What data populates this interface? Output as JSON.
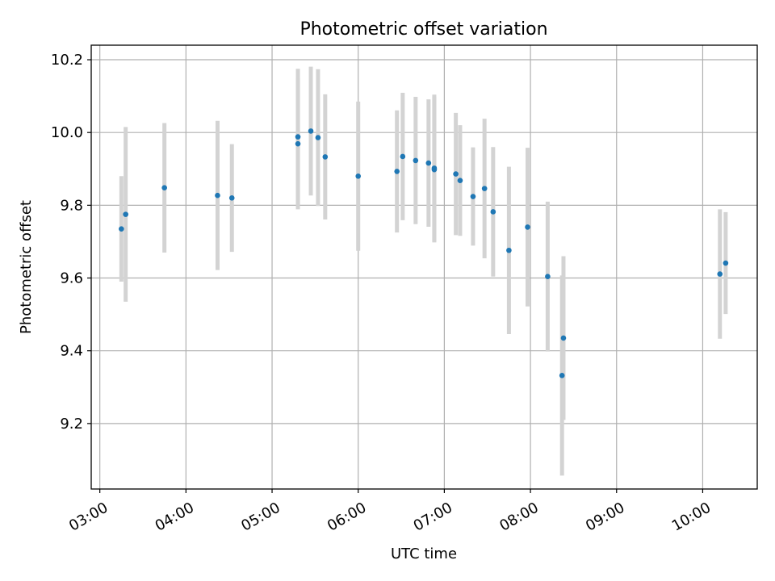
{
  "chart_data": {
    "type": "scatter",
    "title": "Photometric offset variation",
    "xlabel": "UTC time",
    "ylabel": "Photometric offset",
    "xlim": [
      "02:54",
      "10:38"
    ],
    "ylim": [
      9.02,
      10.24
    ],
    "x_ticks": [
      "03:00",
      "04:00",
      "05:00",
      "06:00",
      "07:00",
      "08:00",
      "09:00",
      "10:00"
    ],
    "y_ticks": [
      9.2,
      9.4,
      9.6,
      9.8,
      10.0,
      10.2
    ],
    "grid": true,
    "colors": {
      "marker": "#1f77b4",
      "errorbar": "#d3d3d3"
    },
    "series": [
      {
        "points": [
          {
            "x": "03:15",
            "y": 9.735,
            "err": 0.145
          },
          {
            "x": "03:18",
            "y": 9.775,
            "err": 0.24
          },
          {
            "x": "03:45",
            "y": 9.848,
            "err": 0.178
          },
          {
            "x": "04:22",
            "y": 9.827,
            "err": 0.205
          },
          {
            "x": "04:32",
            "y": 9.82,
            "err": 0.148
          },
          {
            "x": "05:18",
            "y": 9.969,
            "err": 0.18
          },
          {
            "x": "05:18",
            "y": 9.988,
            "err": 0.187
          },
          {
            "x": "05:27",
            "y": 10.004,
            "err": 0.177
          },
          {
            "x": "05:32",
            "y": 9.986,
            "err": 0.188
          },
          {
            "x": "05:37",
            "y": 9.933,
            "err": 0.172
          },
          {
            "x": "06:00",
            "y": 9.88,
            "err": 0.205
          },
          {
            "x": "06:27",
            "y": 9.893,
            "err": 0.168
          },
          {
            "x": "06:31",
            "y": 9.934,
            "err": 0.175
          },
          {
            "x": "06:40",
            "y": 9.923,
            "err": 0.175
          },
          {
            "x": "06:49",
            "y": 9.916,
            "err": 0.175
          },
          {
            "x": "06:53",
            "y": 9.902,
            "err": 0.202
          },
          {
            "x": "06:53",
            "y": 9.898,
            "err": 0.2
          },
          {
            "x": "07:08",
            "y": 9.886,
            "err": 0.168
          },
          {
            "x": "07:11",
            "y": 9.868,
            "err": 0.152
          },
          {
            "x": "07:20",
            "y": 9.824,
            "err": 0.135
          },
          {
            "x": "07:28",
            "y": 9.846,
            "err": 0.192
          },
          {
            "x": "07:34",
            "y": 9.782,
            "err": 0.178
          },
          {
            "x": "07:45",
            "y": 9.676,
            "err": 0.23
          },
          {
            "x": "07:58",
            "y": 9.74,
            "err": 0.218
          },
          {
            "x": "08:12",
            "y": 9.604,
            "err": 0.206
          },
          {
            "x": "08:22",
            "y": 9.332,
            "err": 0.275
          },
          {
            "x": "08:23",
            "y": 9.435,
            "err": 0.225
          },
          {
            "x": "10:12",
            "y": 9.611,
            "err": 0.178
          },
          {
            "x": "10:16",
            "y": 9.641,
            "err": 0.14
          }
        ]
      }
    ]
  }
}
